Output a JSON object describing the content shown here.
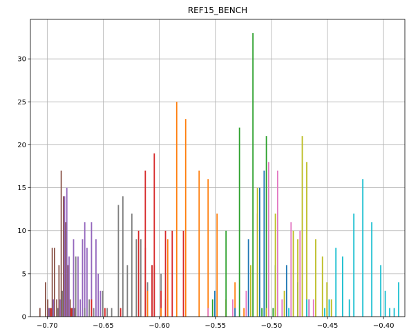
{
  "chart_data": {
    "type": "bar",
    "title": "REF15_BENCH",
    "xlabel": "",
    "ylabel": "",
    "xlim": [
      -0.715,
      -0.381
    ],
    "ylim": [
      0,
      34.6
    ],
    "grid": true,
    "legend": "none",
    "x_ticks": [
      {
        "value": -0.7,
        "label": "−0.70"
      },
      {
        "value": -0.65,
        "label": "−0.65"
      },
      {
        "value": -0.6,
        "label": "−0.60"
      },
      {
        "value": -0.55,
        "label": "−0.55"
      },
      {
        "value": -0.5,
        "label": "−0.50"
      },
      {
        "value": -0.45,
        "label": "−0.45"
      },
      {
        "value": -0.4,
        "label": "−0.40"
      }
    ],
    "y_ticks": [
      {
        "value": 0,
        "label": "0"
      },
      {
        "value": 5,
        "label": "5"
      },
      {
        "value": 10,
        "label": "10"
      },
      {
        "value": 15,
        "label": "15"
      },
      {
        "value": 20,
        "label": "20"
      },
      {
        "value": 25,
        "label": "25"
      },
      {
        "value": 30,
        "label": "30"
      }
    ],
    "series": [
      {
        "color": "#8c564b",
        "x": [
          -0.7065,
          -0.7015,
          -0.6995,
          -0.6975,
          -0.6955,
          -0.6935,
          -0.6915,
          -0.6895,
          -0.6875,
          -0.6855,
          -0.6835,
          -0.6815,
          -0.6795,
          -0.6775,
          -0.6755
        ],
        "values": [
          1,
          4,
          2,
          1,
          8,
          8,
          2,
          6,
          17,
          14,
          11,
          6,
          2,
          1,
          1
        ]
      },
      {
        "color": "#9467bd",
        "x": [
          -0.6985,
          -0.6945,
          -0.6885,
          -0.6845,
          -0.6825,
          -0.6805,
          -0.6765,
          -0.6725,
          -0.6705,
          -0.6685,
          -0.6665,
          -0.6645,
          -0.6605,
          -0.6565,
          -0.6545,
          -0.6525
        ],
        "values": [
          1,
          2,
          2,
          14,
          15,
          7,
          9,
          7,
          2,
          9,
          11,
          8,
          11,
          9,
          5,
          3
        ]
      },
      {
        "color": "#7f7f7f",
        "x": [
          -0.6905,
          -0.6865,
          -0.6745,
          -0.6665,
          -0.6625,
          -0.6585,
          -0.6505,
          -0.6465,
          -0.6425,
          -0.6365,
          -0.6325,
          -0.6285,
          -0.6245,
          -0.6205,
          -0.6165,
          -0.6125,
          -0.6105,
          -0.6065,
          -0.6045,
          -0.5985,
          -0.5945
        ],
        "values": [
          1,
          3,
          7,
          1,
          2,
          1,
          3,
          1,
          1,
          13,
          14,
          6,
          12,
          9,
          9,
          8,
          4,
          6,
          6,
          5,
          2
        ]
      },
      {
        "color": "#d62728",
        "x": [
          -0.6965,
          -0.6785,
          -0.6605,
          -0.6485,
          -0.6345,
          -0.6185,
          -0.6125,
          -0.6065,
          -0.6045,
          -0.5985,
          -0.5945,
          -0.5885,
          -0.5785
        ],
        "values": [
          1,
          1,
          2,
          1,
          1,
          10,
          17,
          6,
          19,
          3,
          10,
          10,
          10
        ]
      },
      {
        "color": "#ff7f0e",
        "x": [
          -0.6105,
          -0.5985,
          -0.5925,
          -0.5845,
          -0.5765,
          -0.5645,
          -0.5565,
          -0.5485,
          -0.5405,
          -0.5325,
          -0.5245
        ],
        "values": [
          3,
          1,
          9,
          25,
          23,
          17,
          16,
          12,
          2,
          4,
          1
        ]
      },
      {
        "color": "#2ca02c",
        "x": [
          -0.5525,
          -0.5405,
          -0.5285,
          -0.5165,
          -0.5085,
          -0.5045,
          -0.4985
        ],
        "values": [
          2,
          10,
          22,
          33,
          1,
          21,
          1
        ]
      },
      {
        "color": "#1f77b4",
        "x": [
          -0.5505,
          -0.5325,
          -0.5205,
          -0.5105,
          -0.5065,
          -0.4965,
          -0.4865,
          -0.4765,
          -0.4665
        ],
        "values": [
          3,
          1,
          9,
          15,
          17,
          6,
          6,
          4,
          2
        ]
      },
      {
        "color": "#e377c2",
        "x": [
          -0.5565,
          -0.5345,
          -0.5225,
          -0.5125,
          -0.5025,
          -0.4945,
          -0.4905,
          -0.4825,
          -0.4745,
          -0.4665,
          -0.4625
        ],
        "values": [
          1,
          2,
          3,
          12,
          18,
          17,
          2,
          11,
          10,
          2,
          2
        ]
      },
      {
        "color": "#bcbd22",
        "x": [
          -0.5185,
          -0.5125,
          -0.5045,
          -0.4965,
          -0.4885,
          -0.4805,
          -0.4765,
          -0.4725,
          -0.4685,
          -0.4605,
          -0.4545,
          -0.4505,
          -0.4465
        ],
        "values": [
          6,
          15,
          1,
          12,
          3,
          10,
          9,
          21,
          18,
          9,
          7,
          4,
          2
        ]
      },
      {
        "color": "#17becf",
        "x": [
          -0.4845,
          -0.4685,
          -0.4525,
          -0.4485,
          -0.4425,
          -0.4365,
          -0.4305,
          -0.4265,
          -0.4185,
          -0.4105,
          -0.4025,
          -0.3985,
          -0.3945,
          -0.3905,
          -0.3865
        ],
        "values": [
          1,
          2,
          1,
          2,
          8,
          7,
          2,
          12,
          16,
          11,
          6,
          3,
          1,
          1,
          4
        ]
      }
    ]
  }
}
